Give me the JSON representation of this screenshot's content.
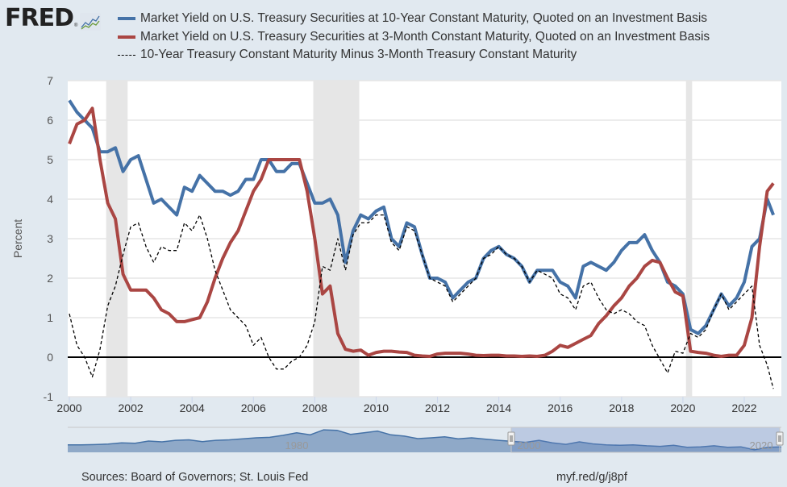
{
  "logo": {
    "text": "FRED",
    "registered": "®",
    "icon": "line-graph-icon"
  },
  "legend": [
    {
      "label": "Market Yield on U.S. Treasury Securities at 10-Year Constant Maturity, Quoted on an Investment Basis",
      "color": "#4572a7",
      "style": "solid"
    },
    {
      "label": "Market Yield on U.S. Treasury Securities at 3-Month Constant Maturity, Quoted on an Investment Basis",
      "color": "#aa4643",
      "style": "solid"
    },
    {
      "label": "10-Year Treasury Constant Maturity Minus 3-Month Treasury Constant Maturity",
      "color": "#000000",
      "style": "dashed"
    }
  ],
  "footer": {
    "sources": "Sources: Board of Governors; St. Louis Fed",
    "short_url": "myf.red/g/j8pf"
  },
  "navigator": {
    "labels": [
      "1980",
      "2000",
      "2020"
    ],
    "selection": [
      2000,
      2023
    ]
  },
  "chart_data": {
    "type": "line",
    "title": "",
    "xlabel": "",
    "ylabel": "Percent",
    "xlim": [
      2000,
      2023
    ],
    "ylim": [
      -1,
      7
    ],
    "x_ticks": [
      "2000",
      "2002",
      "2004",
      "2006",
      "2008",
      "2010",
      "2012",
      "2014",
      "2016",
      "2018",
      "2020",
      "2022"
    ],
    "y_ticks": [
      "-1",
      "0",
      "1",
      "2",
      "3",
      "4",
      "5",
      "6",
      "7"
    ],
    "grid": true,
    "legend_position": "top",
    "recessions": [
      [
        2001.2,
        2001.9
      ],
      [
        2007.95,
        2009.45
      ],
      [
        2020.1,
        2020.3
      ]
    ],
    "x": [
      2000.0,
      2000.25,
      2000.5,
      2000.75,
      2001.0,
      2001.25,
      2001.5,
      2001.75,
      2002.0,
      2002.25,
      2002.5,
      2002.75,
      2003.0,
      2003.25,
      2003.5,
      2003.75,
      2004.0,
      2004.25,
      2004.5,
      2004.75,
      2005.0,
      2005.25,
      2005.5,
      2005.75,
      2006.0,
      2006.25,
      2006.5,
      2006.75,
      2007.0,
      2007.25,
      2007.5,
      2007.75,
      2008.0,
      2008.25,
      2008.5,
      2008.75,
      2009.0,
      2009.25,
      2009.5,
      2009.75,
      2010.0,
      2010.25,
      2010.5,
      2010.75,
      2011.0,
      2011.25,
      2011.5,
      2011.75,
      2012.0,
      2012.25,
      2012.5,
      2012.75,
      2013.0,
      2013.25,
      2013.5,
      2013.75,
      2014.0,
      2014.25,
      2014.5,
      2014.75,
      2015.0,
      2015.25,
      2015.5,
      2015.75,
      2016.0,
      2016.25,
      2016.5,
      2016.75,
      2017.0,
      2017.25,
      2017.5,
      2017.75,
      2018.0,
      2018.25,
      2018.5,
      2018.75,
      2019.0,
      2019.25,
      2019.5,
      2019.75,
      2020.0,
      2020.25,
      2020.5,
      2020.75,
      2021.0,
      2021.25,
      2021.5,
      2021.75,
      2022.0,
      2022.25,
      2022.5,
      2022.75,
      2022.95
    ],
    "series": [
      {
        "name": "10-Year",
        "color": "#4572a7",
        "values": [
          6.5,
          6.2,
          6.0,
          5.8,
          5.2,
          5.2,
          5.3,
          4.7,
          5.0,
          5.1,
          4.5,
          3.9,
          4.0,
          3.8,
          3.6,
          4.3,
          4.2,
          4.6,
          4.4,
          4.2,
          4.2,
          4.1,
          4.2,
          4.5,
          4.5,
          5.0,
          5.0,
          4.7,
          4.7,
          4.9,
          4.9,
          4.4,
          3.9,
          3.9,
          4.0,
          3.6,
          2.4,
          3.2,
          3.6,
          3.5,
          3.7,
          3.8,
          3.0,
          2.8,
          3.4,
          3.3,
          2.6,
          2.0,
          2.0,
          1.9,
          1.5,
          1.7,
          1.9,
          2.0,
          2.5,
          2.7,
          2.8,
          2.6,
          2.5,
          2.3,
          1.9,
          2.2,
          2.2,
          2.2,
          1.9,
          1.8,
          1.5,
          2.3,
          2.4,
          2.3,
          2.2,
          2.4,
          2.7,
          2.9,
          2.9,
          3.1,
          2.7,
          2.4,
          1.9,
          1.8,
          1.6,
          0.7,
          0.6,
          0.8,
          1.2,
          1.6,
          1.3,
          1.5,
          1.9,
          2.8,
          3.0,
          4.0,
          3.6
        ]
      },
      {
        "name": "3-Month",
        "color": "#aa4643",
        "values": [
          5.4,
          5.9,
          6.0,
          6.3,
          5.0,
          3.9,
          3.5,
          2.1,
          1.7,
          1.7,
          1.7,
          1.5,
          1.2,
          1.1,
          0.9,
          0.9,
          0.95,
          1.0,
          1.4,
          2.0,
          2.5,
          2.9,
          3.2,
          3.7,
          4.2,
          4.5,
          5.0,
          5.0,
          5.0,
          5.0,
          5.0,
          4.2,
          3.0,
          1.6,
          1.8,
          0.6,
          0.2,
          0.15,
          0.18,
          0.05,
          0.12,
          0.15,
          0.15,
          0.13,
          0.12,
          0.05,
          0.03,
          0.02,
          0.08,
          0.1,
          0.1,
          0.1,
          0.08,
          0.05,
          0.04,
          0.05,
          0.05,
          0.03,
          0.03,
          0.02,
          0.03,
          0.02,
          0.05,
          0.15,
          0.3,
          0.25,
          0.35,
          0.45,
          0.55,
          0.85,
          1.05,
          1.3,
          1.5,
          1.8,
          2.0,
          2.3,
          2.45,
          2.4,
          2.0,
          1.65,
          1.55,
          0.15,
          0.12,
          0.1,
          0.05,
          0.02,
          0.05,
          0.05,
          0.3,
          1.0,
          2.8,
          4.2,
          4.4
        ]
      },
      {
        "name": "10Y-3M Spread",
        "color": "#000000",
        "values": [
          1.1,
          0.3,
          0.0,
          -0.5,
          0.2,
          1.3,
          1.8,
          2.6,
          3.3,
          3.4,
          2.8,
          2.4,
          2.8,
          2.7,
          2.7,
          3.4,
          3.2,
          3.6,
          3.0,
          2.2,
          1.7,
          1.2,
          1.0,
          0.8,
          0.3,
          0.5,
          0.0,
          -0.3,
          -0.3,
          -0.1,
          0.0,
          0.3,
          0.9,
          2.3,
          2.2,
          3.0,
          2.2,
          3.1,
          3.4,
          3.4,
          3.6,
          3.6,
          2.9,
          2.7,
          3.3,
          3.2,
          2.6,
          2.0,
          1.9,
          1.8,
          1.4,
          1.6,
          1.8,
          2.0,
          2.5,
          2.6,
          2.8,
          2.6,
          2.5,
          2.3,
          1.9,
          2.2,
          2.1,
          2.0,
          1.6,
          1.5,
          1.2,
          1.8,
          1.9,
          1.5,
          1.2,
          1.1,
          1.2,
          1.1,
          0.9,
          0.8,
          0.3,
          -0.05,
          -0.4,
          0.15,
          0.1,
          0.6,
          0.5,
          0.7,
          1.2,
          1.6,
          1.2,
          1.4,
          1.6,
          1.8,
          0.3,
          -0.2,
          -0.8
        ]
      }
    ]
  }
}
